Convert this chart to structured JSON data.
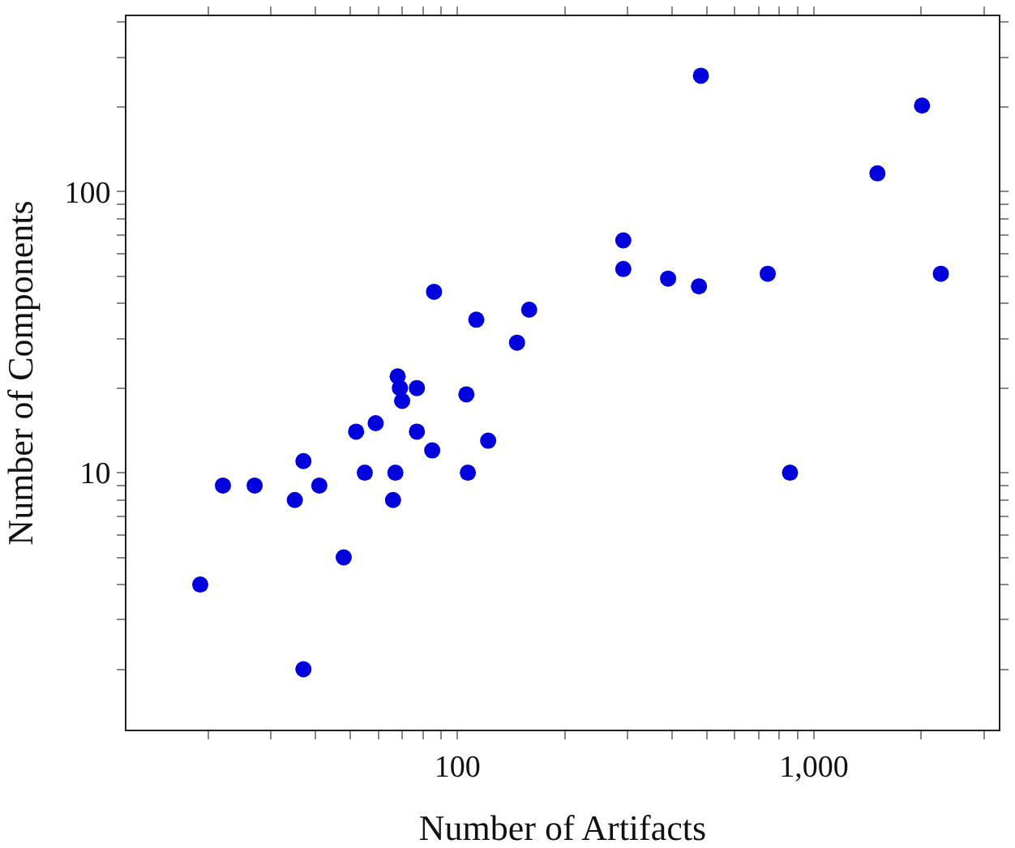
{
  "chart_data": {
    "type": "scatter",
    "xlabel": "Number of Artifacts",
    "ylabel": "Number of Components",
    "log": "xy",
    "grid": false,
    "legend": false,
    "marker": "circle",
    "xlim": [
      11.8,
      3300
    ],
    "ylim": [
      1.22,
      420
    ],
    "xticks": [
      {
        "value": 20,
        "label": null
      },
      {
        "value": 30,
        "label": null
      },
      {
        "value": 40,
        "label": null
      },
      {
        "value": 50,
        "label": null
      },
      {
        "value": 60,
        "label": null
      },
      {
        "value": 70,
        "label": null
      },
      {
        "value": 80,
        "label": null
      },
      {
        "value": 90,
        "label": null
      },
      100,
      {
        "value": 200,
        "label": null
      },
      {
        "value": 300,
        "label": null
      },
      {
        "value": 400,
        "label": null
      },
      {
        "value": 500,
        "label": null
      },
      {
        "value": 600,
        "label": null
      },
      {
        "value": 700,
        "label": null
      },
      {
        "value": 800,
        "label": null
      },
      {
        "value": 900,
        "label": null
      },
      {
        "value": 1000,
        "label": "1,000"
      },
      {
        "value": 2000,
        "label": null
      },
      {
        "value": 3000,
        "label": null
      }
    ],
    "yticks": [
      {
        "value": 2,
        "label": null
      },
      {
        "value": 3,
        "label": null
      },
      {
        "value": 4,
        "label": null
      },
      {
        "value": 5,
        "label": null
      },
      {
        "value": 6,
        "label": null
      },
      {
        "value": 7,
        "label": null
      },
      {
        "value": 8,
        "label": null
      },
      {
        "value": 9,
        "label": null
      },
      10,
      {
        "value": 20,
        "label": null
      },
      {
        "value": 30,
        "label": null
      },
      {
        "value": 40,
        "label": null
      },
      {
        "value": 50,
        "label": null
      },
      {
        "value": 60,
        "label": null
      },
      {
        "value": 70,
        "label": null
      },
      {
        "value": 80,
        "label": null
      },
      {
        "value": 90,
        "label": null
      },
      100,
      {
        "value": 200,
        "label": null
      },
      {
        "value": 300,
        "label": null
      },
      {
        "value": 400,
        "label": null
      }
    ],
    "series": [
      {
        "color": "#0000dd",
        "x": [
          19,
          22,
          27,
          35,
          37,
          41,
          37,
          48,
          52,
          55,
          59,
          66,
          67,
          68,
          69,
          70,
          77,
          77,
          85,
          86,
          106,
          107,
          113,
          122,
          147,
          159,
          292,
          292,
          390,
          476,
          482,
          742,
          857,
          1507,
          2010,
          2270
        ],
        "values": [
          4,
          9,
          9,
          8,
          11,
          9,
          2,
          5,
          14,
          10,
          15,
          8,
          10,
          22,
          20,
          18,
          20,
          14,
          12,
          44,
          19,
          10,
          35,
          13,
          29,
          38,
          67,
          53,
          49,
          46,
          258,
          51,
          10,
          116,
          202,
          51
        ]
      }
    ]
  }
}
